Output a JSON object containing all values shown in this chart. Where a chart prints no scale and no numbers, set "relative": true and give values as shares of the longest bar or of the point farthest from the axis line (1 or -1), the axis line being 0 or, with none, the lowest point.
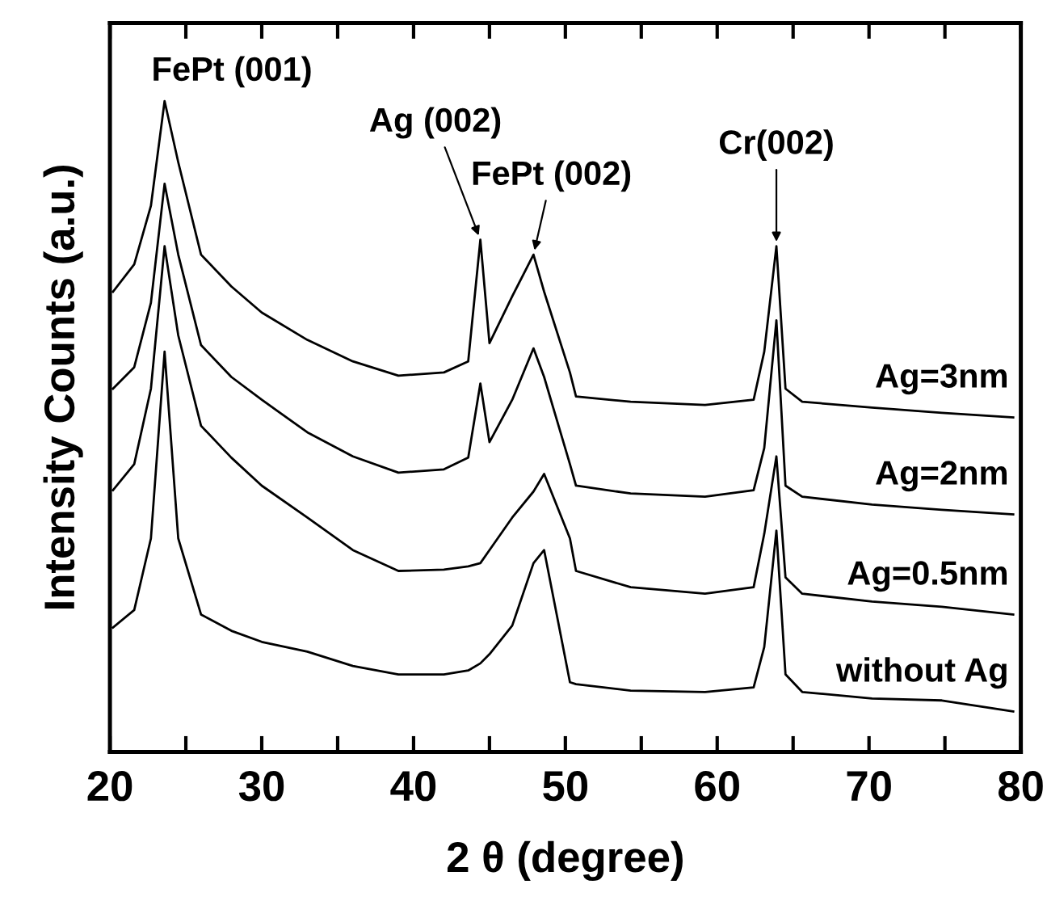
{
  "chart_data": {
    "type": "line",
    "relative": true,
    "xlabel": "2 θ (degree)",
    "ylabel": "Intensity Counts (a.u.)",
    "xlim": [
      20,
      80
    ],
    "xticks": [
      20,
      {
        "value": 25,
        "label": null
      },
      30,
      {
        "value": 35,
        "label": null
      },
      40,
      {
        "value": 45,
        "label": null
      },
      50,
      {
        "value": 55,
        "label": null
      },
      60,
      {
        "value": 65,
        "label": null
      },
      70,
      {
        "value": 75,
        "label": null
      },
      80
    ],
    "x": [
      20.2,
      21.6,
      22.7,
      23.6,
      24.5,
      26,
      28,
      30,
      33,
      36,
      39,
      42,
      43.6,
      44.4,
      45.0,
      46.5,
      47.9,
      48.6,
      50.3,
      50.7,
      54.3,
      59.2,
      62.4,
      63.1,
      63.9,
      64.5,
      65.6,
      70.2,
      74.8,
      79.5
    ],
    "series": [
      {
        "name": "Ag=3nm",
        "color": "#000000",
        "values": [
          0.707,
          0.749,
          0.839,
          1.0,
          0.906,
          0.764,
          0.715,
          0.675,
          0.633,
          0.6,
          0.578,
          0.583,
          0.6,
          0.787,
          0.628,
          0.7,
          0.764,
          0.707,
          0.583,
          0.546,
          0.538,
          0.533,
          0.541,
          0.615,
          0.777,
          0.558,
          0.538,
          0.529,
          0.521,
          0.514
        ]
      },
      {
        "name": "Ag=2nm",
        "color": "#000000",
        "values": [
          0.558,
          0.591,
          0.69,
          0.873,
          0.764,
          0.625,
          0.576,
          0.541,
          0.491,
          0.454,
          0.429,
          0.434,
          0.452,
          0.566,
          0.476,
          0.541,
          0.62,
          0.576,
          0.442,
          0.409,
          0.397,
          0.392,
          0.402,
          0.467,
          0.663,
          0.409,
          0.392,
          0.38,
          0.372,
          0.365
        ]
      },
      {
        "name": "Ag=0.5nm",
        "color": "#000000",
        "values": [
          0.402,
          0.442,
          0.558,
          0.777,
          0.64,
          0.501,
          0.452,
          0.409,
          0.36,
          0.31,
          0.278,
          0.28,
          0.285,
          0.29,
          0.31,
          0.36,
          0.4,
          0.427,
          0.328,
          0.278,
          0.253,
          0.243,
          0.253,
          0.335,
          0.454,
          0.268,
          0.243,
          0.231,
          0.223,
          0.211
        ]
      },
      {
        "name": "without Ag",
        "color": "#000000",
        "values": [
          0.191,
          0.218,
          0.328,
          0.615,
          0.328,
          0.211,
          0.186,
          0.169,
          0.154,
          0.132,
          0.119,
          0.119,
          0.125,
          0.136,
          0.15,
          0.194,
          0.29,
          0.31,
          0.107,
          0.104,
          0.094,
          0.092,
          0.099,
          0.161,
          0.34,
          0.119,
          0.092,
          0.082,
          0.079,
          0.062
        ]
      }
    ],
    "annotations": [
      {
        "text": "FePt (001)",
        "x": 23.6,
        "y": 1.0
      },
      {
        "text": "Ag (002)",
        "x": 44.4,
        "y": 0.787
      },
      {
        "text": "FePt (002)",
        "x": 47.9,
        "y": 0.764
      },
      {
        "text": "Cr(002)",
        "x": 63.9,
        "y": 0.777
      }
    ],
    "line_style": "solid",
    "marker": "none",
    "grid": false,
    "legend": false
  }
}
